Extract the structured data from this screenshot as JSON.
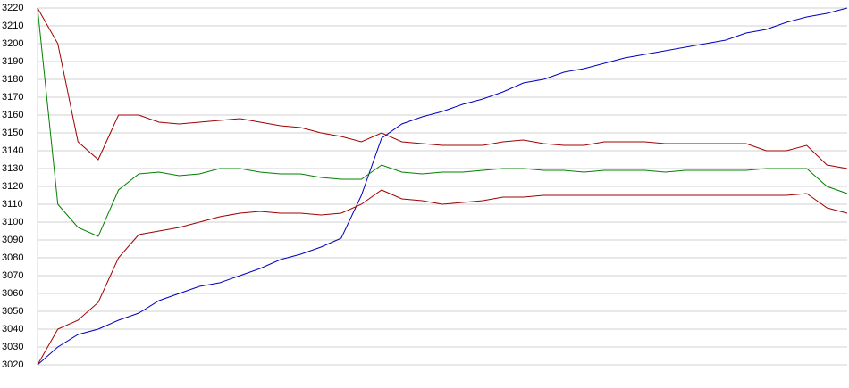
{
  "chart_data": {
    "type": "line",
    "ylim": [
      3020,
      3220
    ],
    "yticks": [
      3020,
      3030,
      3040,
      3050,
      3060,
      3070,
      3080,
      3090,
      3100,
      3110,
      3120,
      3130,
      3140,
      3150,
      3160,
      3170,
      3180,
      3190,
      3200,
      3210,
      3220
    ],
    "grid": true,
    "series": [
      {
        "color": "#0000c0",
        "values": [
          3020,
          3030,
          3037,
          3040,
          3045,
          3049,
          3056,
          3060,
          3064,
          3066,
          3070,
          3074,
          3079,
          3082,
          3086,
          3091,
          3115,
          3147,
          3155,
          3159,
          3162,
          3166,
          3169,
          3173,
          3178,
          3180,
          3184,
          3186,
          3189,
          3192,
          3194,
          3196,
          3198,
          3200,
          3202,
          3206,
          3208,
          3212,
          3215,
          3217,
          3220
        ]
      },
      {
        "color": "#008000",
        "values": [
          3220,
          3110,
          3097,
          3092,
          3118,
          3127,
          3128,
          3126,
          3127,
          3130,
          3130,
          3128,
          3127,
          3127,
          3125,
          3124,
          3124,
          3132,
          3128,
          3127,
          3128,
          3128,
          3129,
          3130,
          3130,
          3129,
          3129,
          3128,
          3129,
          3129,
          3129,
          3128,
          3129,
          3129,
          3129,
          3129,
          3130,
          3130,
          3130,
          3120,
          3116
        ]
      },
      {
        "color": "#a00000",
        "values": [
          3220,
          3200,
          3145,
          3135,
          3160,
          3160,
          3156,
          3155,
          3156,
          3157,
          3158,
          3156,
          3154,
          3153,
          3150,
          3148,
          3145,
          3150,
          3145,
          3144,
          3143,
          3143,
          3143,
          3145,
          3146,
          3144,
          3143,
          3143,
          3145,
          3145,
          3145,
          3144,
          3144,
          3144,
          3144,
          3144,
          3140,
          3140,
          3143,
          3132,
          3130
        ]
      },
      {
        "color": "#a00000",
        "values": [
          3020,
          3040,
          3045,
          3055,
          3080,
          3093,
          3095,
          3097,
          3100,
          3103,
          3105,
          3106,
          3105,
          3105,
          3104,
          3105,
          3110,
          3118,
          3113,
          3112,
          3110,
          3111,
          3112,
          3114,
          3114,
          3115,
          3115,
          3115,
          3115,
          3115,
          3115,
          3115,
          3115,
          3115,
          3115,
          3115,
          3115,
          3115,
          3116,
          3108,
          3105
        ]
      }
    ]
  }
}
